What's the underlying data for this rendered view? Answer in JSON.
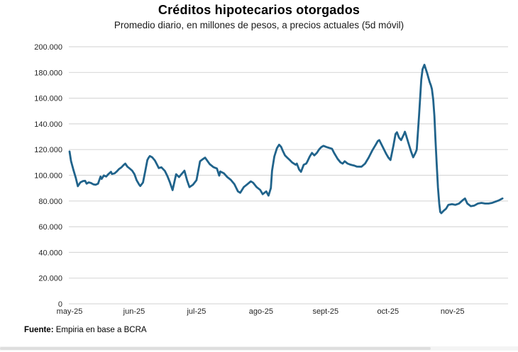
{
  "chart": {
    "title": "Créditos hipotecarios otorgados",
    "subtitle": "Promedio diario, en millones de pesos, a precios actuales (5d móvil)",
    "source_label": "Fuente:",
    "source_text": " Empiria en base a BCRA"
  },
  "chart_data": {
    "type": "line",
    "title": "Créditos hipotecarios otorgados",
    "subtitle": "Promedio diario, en millones de pesos, a precios actuales (5d móvil)",
    "source": "Fuente: Empiria en base a BCRA",
    "grid": true,
    "legend": "none",
    "line_color": "#20638b",
    "grid_color": "#d9d9d9",
    "axis_text_color": "#262626",
    "ylim": [
      0,
      200000
    ],
    "y_step": 20000,
    "y_tick_values": [
      0,
      20000,
      40000,
      60000,
      80000,
      100000,
      120000,
      140000,
      160000,
      180000,
      200000
    ],
    "y_tick_labels": [
      "0",
      "20.000",
      "40.000",
      "60.000",
      "80.000",
      "100.000",
      "120.000",
      "140.000",
      "160.000",
      "180.000",
      "200.000"
    ],
    "x_tick_labels": [
      "may-25",
      "jun-25",
      "jul-25",
      "ago-25",
      "sept-25",
      "oct-25",
      "nov-25"
    ],
    "x_tick_days": [
      0,
      31,
      61,
      92,
      123,
      153,
      184
    ],
    "x_domain_days": [
      0,
      210
    ],
    "series": [
      {
        "name": "Créditos hipotecarios otorgados (5d móvil)",
        "points": [
          [
            0,
            118500
          ],
          [
            0.7,
            111000
          ],
          [
            1.8,
            104500
          ],
          [
            3,
            98000
          ],
          [
            4,
            91500
          ],
          [
            5.2,
            94500
          ],
          [
            6.4,
            95500
          ],
          [
            7.5,
            95700
          ],
          [
            8.2,
            93500
          ],
          [
            9.2,
            94500
          ],
          [
            10.3,
            94000
          ],
          [
            11.4,
            93000
          ],
          [
            12.5,
            92600
          ],
          [
            13.7,
            93500
          ],
          [
            14.9,
            99000
          ],
          [
            15.4,
            97200
          ],
          [
            16.5,
            99900
          ],
          [
            17.6,
            99000
          ],
          [
            18.6,
            100800
          ],
          [
            19.9,
            102700
          ],
          [
            20.4,
            101000
          ],
          [
            21.6,
            101500
          ],
          [
            22.7,
            103000
          ],
          [
            23.8,
            104900
          ],
          [
            25,
            106300
          ],
          [
            26.1,
            108200
          ],
          [
            26.8,
            109100
          ],
          [
            27.8,
            106700
          ],
          [
            28.8,
            105400
          ],
          [
            30.1,
            103600
          ],
          [
            31.2,
            100800
          ],
          [
            32.2,
            96200
          ],
          [
            33.5,
            92600
          ],
          [
            34,
            91600
          ],
          [
            35.3,
            94400
          ],
          [
            36.3,
            102700
          ],
          [
            37.4,
            111900
          ],
          [
            38,
            113700
          ],
          [
            38.6,
            115000
          ],
          [
            39.7,
            114000
          ],
          [
            41,
            111500
          ],
          [
            42,
            108400
          ],
          [
            42.9,
            105600
          ],
          [
            44.1,
            106200
          ],
          [
            45.8,
            103400
          ],
          [
            47.1,
            99000
          ],
          [
            48.1,
            95000
          ],
          [
            49.5,
            88500
          ],
          [
            51.2,
            100800
          ],
          [
            52.6,
            98600
          ],
          [
            55.2,
            103600
          ],
          [
            56.5,
            96000
          ],
          [
            57.6,
            90800
          ],
          [
            59.3,
            92600
          ],
          [
            61,
            96200
          ],
          [
            62.7,
            110900
          ],
          [
            64,
            112500
          ],
          [
            65.1,
            113700
          ],
          [
            67.4,
            108600
          ],
          [
            69.1,
            106400
          ],
          [
            70.8,
            105300
          ],
          [
            71.9,
            99700
          ],
          [
            72.4,
            103000
          ],
          [
            74.1,
            101600
          ],
          [
            75.8,
            98600
          ],
          [
            77.5,
            96400
          ],
          [
            79.2,
            93100
          ],
          [
            80.9,
            87500
          ],
          [
            82,
            86400
          ],
          [
            83.7,
            90800
          ],
          [
            85.4,
            93000
          ],
          [
            87.1,
            95300
          ],
          [
            88.2,
            94200
          ],
          [
            89.9,
            90800
          ],
          [
            91.6,
            88600
          ],
          [
            92.8,
            85300
          ],
          [
            94.5,
            87500
          ],
          [
            95.6,
            84200
          ],
          [
            96.7,
            90000
          ],
          [
            97.3,
            103600
          ],
          [
            98.4,
            114600
          ],
          [
            99.6,
            121000
          ],
          [
            100.7,
            123800
          ],
          [
            101.7,
            122000
          ],
          [
            102.4,
            119200
          ],
          [
            103.5,
            115500
          ],
          [
            104.6,
            113700
          ],
          [
            105.8,
            111900
          ],
          [
            106.9,
            110000
          ],
          [
            108.6,
            108200
          ],
          [
            109.2,
            109100
          ],
          [
            110.3,
            104500
          ],
          [
            111.2,
            102700
          ],
          [
            112.5,
            108200
          ],
          [
            113.7,
            109100
          ],
          [
            114.2,
            110500
          ],
          [
            115.4,
            114600
          ],
          [
            116.5,
            117400
          ],
          [
            117.6,
            115500
          ],
          [
            118.8,
            117400
          ],
          [
            119.9,
            120100
          ],
          [
            121,
            122000
          ],
          [
            122,
            122900
          ],
          [
            123.4,
            122000
          ],
          [
            124.4,
            121500
          ],
          [
            126.1,
            120600
          ],
          [
            127.1,
            117400
          ],
          [
            128.8,
            112800
          ],
          [
            130.2,
            110000
          ],
          [
            131.2,
            109100
          ],
          [
            132.2,
            110900
          ],
          [
            133.6,
            109100
          ],
          [
            134.6,
            108500
          ],
          [
            135.6,
            108000
          ],
          [
            136.9,
            107500
          ],
          [
            138,
            106800
          ],
          [
            139.3,
            106700
          ],
          [
            140.3,
            106700
          ],
          [
            142,
            109100
          ],
          [
            143.7,
            113700
          ],
          [
            145.4,
            119200
          ],
          [
            147.1,
            123800
          ],
          [
            148.1,
            126600
          ],
          [
            148.8,
            127400
          ],
          [
            150.5,
            121900
          ],
          [
            152.2,
            116400
          ],
          [
            153.2,
            113700
          ],
          [
            154.2,
            111900
          ],
          [
            155.6,
            122900
          ],
          [
            156.6,
            132100
          ],
          [
            157.3,
            133500
          ],
          [
            158.3,
            129300
          ],
          [
            159.3,
            127400
          ],
          [
            160.7,
            132100
          ],
          [
            161.1,
            133900
          ],
          [
            161.7,
            131100
          ],
          [
            162.7,
            125600
          ],
          [
            164.1,
            118300
          ],
          [
            165.1,
            114000
          ],
          [
            166.2,
            117400
          ],
          [
            166.8,
            120000
          ],
          [
            167.9,
            146000
          ],
          [
            168.5,
            162000
          ],
          [
            169,
            174500
          ],
          [
            169.6,
            182500
          ],
          [
            170.5,
            186000
          ],
          [
            171.9,
            179000
          ],
          [
            172.4,
            176000
          ],
          [
            173,
            172500
          ],
          [
            173.6,
            170000
          ],
          [
            174.1,
            167000
          ],
          [
            174.7,
            159000
          ],
          [
            175.3,
            146000
          ],
          [
            175.8,
            127500
          ],
          [
            176.4,
            109000
          ],
          [
            177,
            90500
          ],
          [
            177.6,
            78000
          ],
          [
            178.1,
            71500
          ],
          [
            178.6,
            70500
          ],
          [
            179.8,
            72500
          ],
          [
            180.9,
            74000
          ],
          [
            182,
            77000
          ],
          [
            183.7,
            77500
          ],
          [
            185.4,
            77000
          ],
          [
            187.1,
            78000
          ],
          [
            188.8,
            80500
          ],
          [
            190,
            82000
          ],
          [
            191.1,
            78000
          ],
          [
            192.8,
            76000
          ],
          [
            194.5,
            76500
          ],
          [
            196.2,
            78000
          ],
          [
            197.9,
            78500
          ],
          [
            199.6,
            78000
          ],
          [
            201.3,
            78000
          ],
          [
            203,
            78500
          ],
          [
            204.6,
            79500
          ],
          [
            206.3,
            80500
          ],
          [
            208,
            82000
          ]
        ]
      }
    ]
  }
}
